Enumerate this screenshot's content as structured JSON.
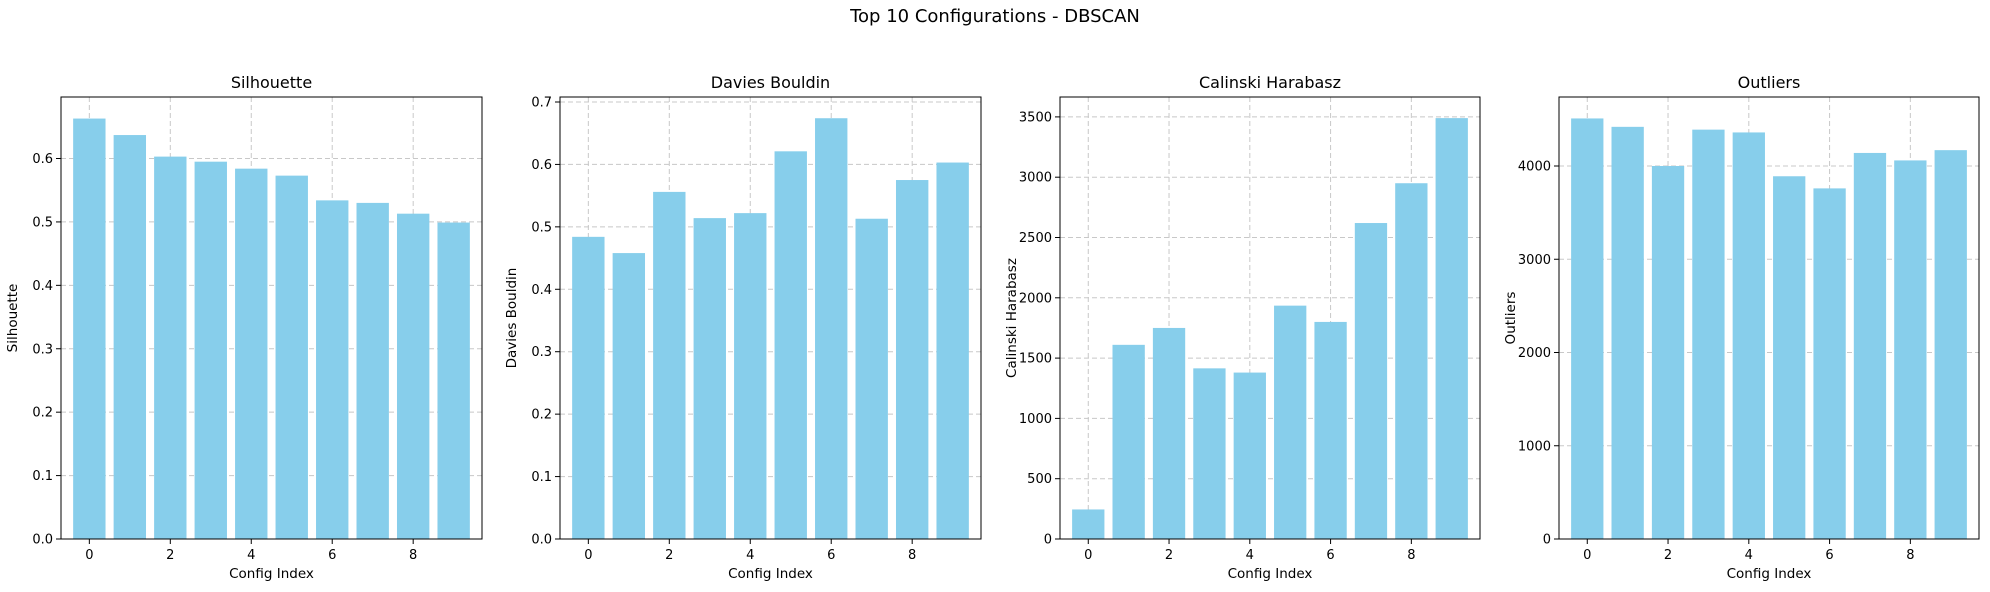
{
  "figure": {
    "title": "Top 10 Configurations - DBSCAN"
  },
  "colors": {
    "bar": "#87CEEB",
    "grid": "#c8c8c8",
    "axis": "#000000"
  },
  "chart_data": [
    {
      "type": "bar",
      "title": "Silhouette",
      "xlabel": "Config Index",
      "ylabel": "Silhouette",
      "x": [
        0,
        1,
        2,
        3,
        4,
        5,
        6,
        7,
        8,
        9
      ],
      "values": [
        0.663,
        0.637,
        0.603,
        0.595,
        0.584,
        0.573,
        0.534,
        0.53,
        0.513,
        0.499
      ],
      "xlim": [
        -0.7,
        9.7
      ],
      "ylim": [
        0,
        0.697
      ],
      "xticks": [
        0,
        2,
        4,
        6,
        8
      ],
      "xtick_labels": [
        "0",
        "2",
        "4",
        "6",
        "8"
      ],
      "yticks": [
        0,
        0.1,
        0.2,
        0.3,
        0.4,
        0.5,
        0.6
      ],
      "ytick_labels": [
        "0.0",
        "0.1",
        "0.2",
        "0.3",
        "0.4",
        "0.5",
        "0.6"
      ],
      "grid": true
    },
    {
      "type": "bar",
      "title": "Davies Bouldin",
      "xlabel": "Config Index",
      "ylabel": "Davies Bouldin",
      "x": [
        0,
        1,
        2,
        3,
        4,
        5,
        6,
        7,
        8,
        9
      ],
      "values": [
        0.484,
        0.458,
        0.556,
        0.514,
        0.522,
        0.621,
        0.674,
        0.513,
        0.575,
        0.603
      ],
      "xlim": [
        -0.7,
        9.7
      ],
      "ylim": [
        0,
        0.708
      ],
      "xticks": [
        0,
        2,
        4,
        6,
        8
      ],
      "xtick_labels": [
        "0",
        "2",
        "4",
        "6",
        "8"
      ],
      "yticks": [
        0,
        0.1,
        0.2,
        0.3,
        0.4,
        0.5,
        0.6,
        0.7
      ],
      "ytick_labels": [
        "0.0",
        "0.1",
        "0.2",
        "0.3",
        "0.4",
        "0.5",
        "0.6",
        "0.7"
      ],
      "grid": true
    },
    {
      "type": "bar",
      "title": "Calinski Harabasz",
      "xlabel": "Config Index",
      "ylabel": "Calinski Harabasz",
      "x": [
        0,
        1,
        2,
        3,
        4,
        5,
        6,
        7,
        8,
        9
      ],
      "values": [
        245,
        1610,
        1750,
        1415,
        1380,
        1935,
        1800,
        2620,
        2950,
        3490
      ],
      "xlim": [
        -0.7,
        9.7
      ],
      "ylim": [
        0,
        3665
      ],
      "xticks": [
        0,
        2,
        4,
        6,
        8
      ],
      "xtick_labels": [
        "0",
        "2",
        "4",
        "6",
        "8"
      ],
      "yticks": [
        0,
        500,
        1000,
        1500,
        2000,
        2500,
        3000,
        3500
      ],
      "ytick_labels": [
        "0",
        "500",
        "1000",
        "1500",
        "2000",
        "2500",
        "3000",
        "3500"
      ],
      "grid": true
    },
    {
      "type": "bar",
      "title": "Outliers",
      "xlabel": "Config Index",
      "ylabel": "Outliers",
      "x": [
        0,
        1,
        2,
        3,
        4,
        5,
        6,
        7,
        8,
        9
      ],
      "values": [
        4510,
        4420,
        4000,
        4390,
        4360,
        3890,
        3760,
        4140,
        4060,
        4170
      ],
      "xlim": [
        -0.7,
        9.7
      ],
      "ylim": [
        0,
        4740
      ],
      "xticks": [
        0,
        2,
        4,
        6,
        8
      ],
      "xtick_labels": [
        "0",
        "2",
        "4",
        "6",
        "8"
      ],
      "yticks": [
        0,
        1000,
        2000,
        3000,
        4000
      ],
      "ytick_labels": [
        "0",
        "1000",
        "2000",
        "3000",
        "4000"
      ],
      "grid": true
    }
  ]
}
